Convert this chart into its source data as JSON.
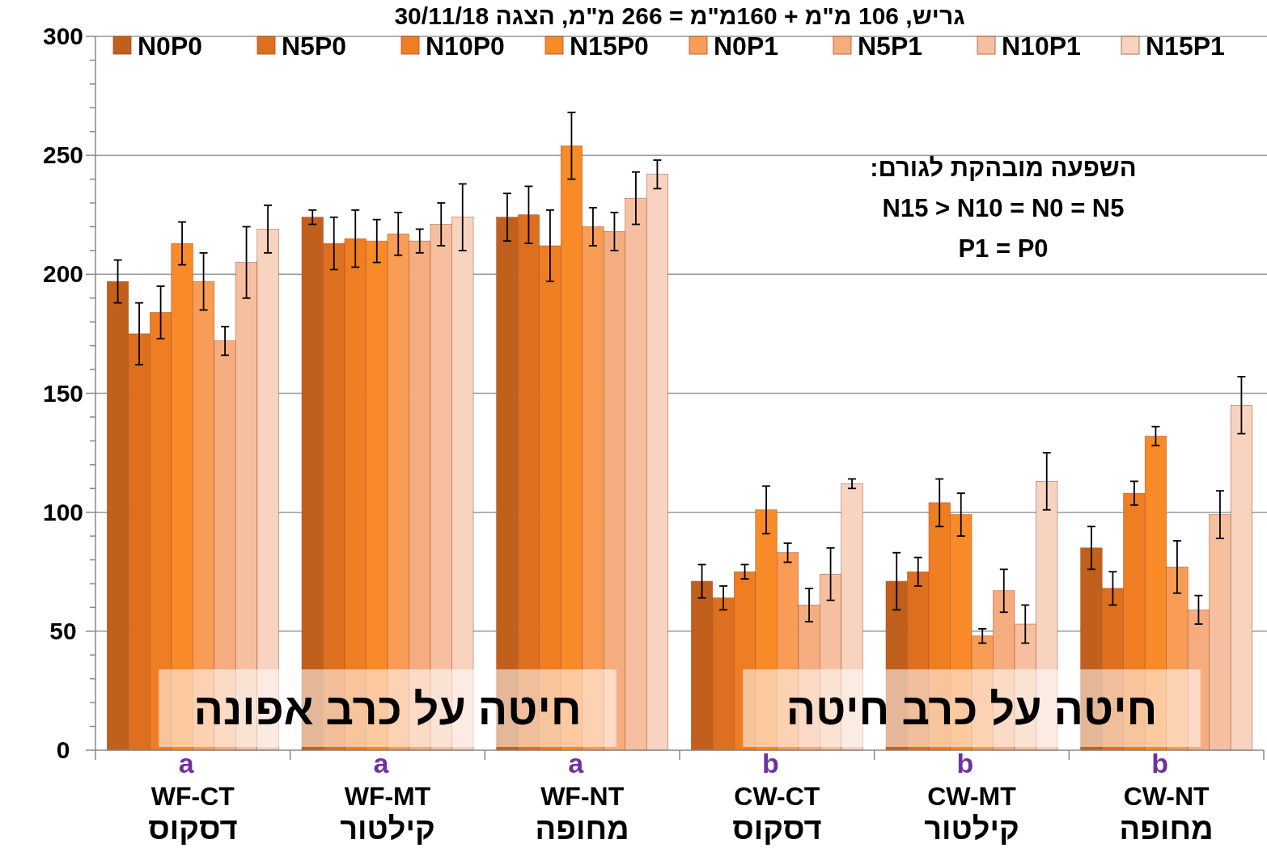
{
  "chart_data": {
    "type": "bar",
    "title": "גריש, 106 מ\"מ + 160מ\"מ = 266 מ\"מ, הצגה 30/11/18",
    "categories": [
      "WF-CT\nדסקוס",
      "WF-MT\nקילטור",
      "WF-NT\nמחופה",
      "CW-CT\nדסקוס",
      "CW-MT\nקילטור",
      "CW-NT\nמחופה"
    ],
    "series": [
      {
        "name": "N0P0",
        "color": "#c0601c",
        "values": [
          197,
          224,
          224,
          71,
          71,
          85
        ],
        "errors": [
          9,
          3,
          10,
          7,
          12,
          9
        ]
      },
      {
        "name": "N5P0",
        "color": "#de6f1f",
        "values": [
          175,
          213,
          225,
          64,
          75,
          68
        ],
        "errors": [
          13,
          11,
          12,
          5,
          6,
          7
        ]
      },
      {
        "name": "N10P0",
        "color": "#ef7d22",
        "values": [
          184,
          215,
          212,
          75,
          104,
          108
        ],
        "errors": [
          11,
          12,
          15,
          3,
          10,
          5
        ]
      },
      {
        "name": "N15P0",
        "color": "#f98a28",
        "values": [
          213,
          214,
          254,
          101,
          99,
          132
        ],
        "errors": [
          9,
          9,
          14,
          10,
          9,
          4
        ]
      },
      {
        "name": "N0P1",
        "color": "#f99c55",
        "values": [
          197,
          217,
          220,
          83,
          48,
          77
        ],
        "errors": [
          12,
          9,
          8,
          4,
          3,
          11
        ]
      },
      {
        "name": "N5P1",
        "color": "#f5ad80",
        "values": [
          172,
          214,
          218,
          61,
          67,
          59
        ],
        "errors": [
          6,
          5,
          8,
          7,
          9,
          6
        ]
      },
      {
        "name": "N10P1",
        "color": "#f6c0a0",
        "values": [
          205,
          221,
          232,
          74,
          53,
          99
        ],
        "errors": [
          15,
          9,
          11,
          11,
          8,
          10
        ]
      },
      {
        "name": "N15P1",
        "color": "#f7d3c0",
        "values": [
          219,
          224,
          242,
          112,
          113,
          145
        ],
        "errors": [
          10,
          14,
          6,
          2,
          12,
          12
        ]
      }
    ],
    "ylim": [
      0,
      300
    ],
    "yticks": [
      0,
      {
        "value": 10,
        "label": null
      },
      {
        "value": 20,
        "label": null
      },
      {
        "value": 30,
        "label": null
      },
      {
        "value": 40,
        "label": null
      },
      50,
      {
        "value": 60,
        "label": null
      },
      {
        "value": 70,
        "label": null
      },
      {
        "value": 80,
        "label": null
      },
      {
        "value": 90,
        "label": null
      },
      100,
      {
        "value": 110,
        "label": null
      },
      {
        "value": 120,
        "label": null
      },
      {
        "value": 130,
        "label": null
      },
      {
        "value": 140,
        "label": null
      },
      150,
      {
        "value": 160,
        "label": null
      },
      {
        "value": 170,
        "label": null
      },
      {
        "value": 180,
        "label": null
      },
      {
        "value": 190,
        "label": null
      },
      200,
      {
        "value": 210,
        "label": null
      },
      {
        "value": 220,
        "label": null
      },
      {
        "value": 230,
        "label": null
      },
      {
        "value": 240,
        "label": null
      },
      250,
      {
        "value": 260,
        "label": null
      },
      {
        "value": 270,
        "label": null
      },
      {
        "value": 280,
        "label": null
      },
      {
        "value": 290,
        "label": null
      },
      300
    ],
    "grid": "y",
    "legend": "top",
    "annotations": [
      "a",
      "a",
      "a",
      "b",
      "b",
      "b",
      "חיטה על כרב אפונה",
      "חיטה על כרב חיטה",
      "השפעה מובהקת לגורם:",
      "N15 > N10 = N0 = N5",
      "P1 = P0"
    ]
  }
}
